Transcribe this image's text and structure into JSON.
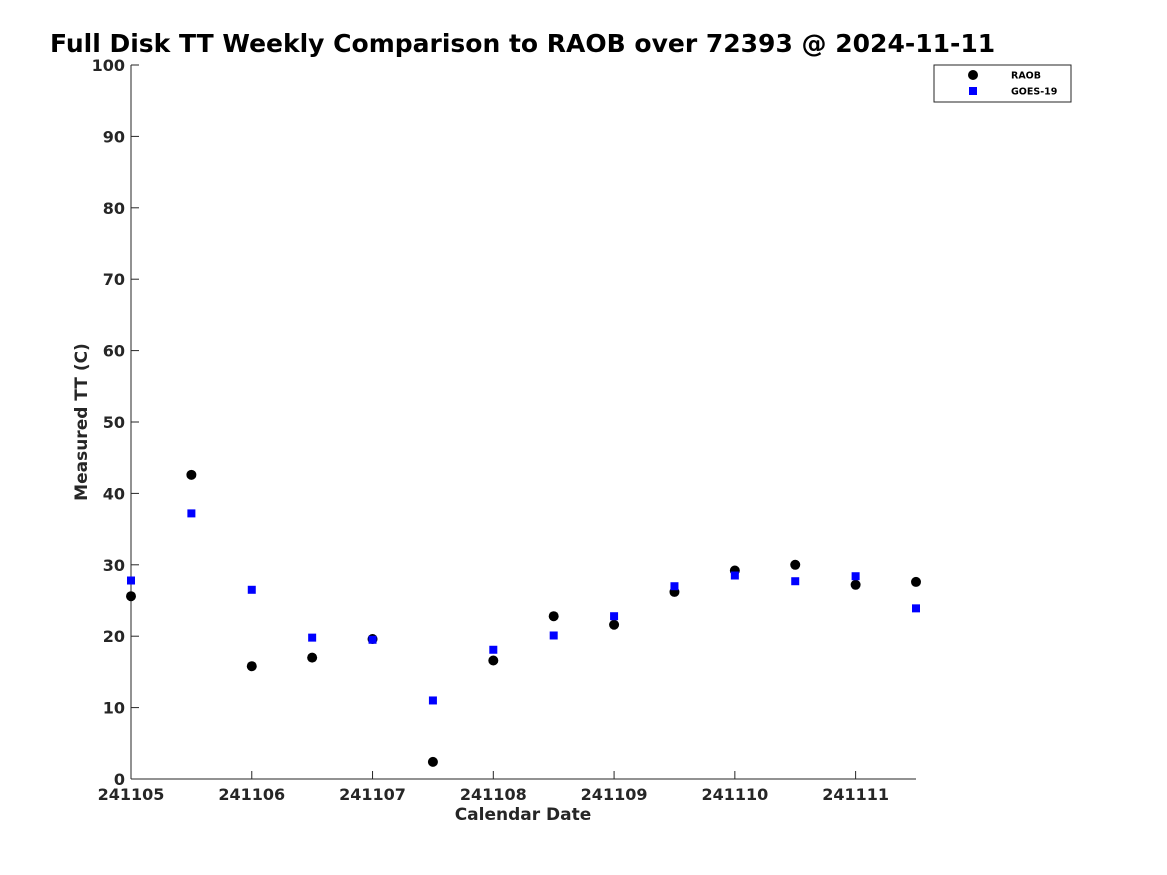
{
  "chart_data": {
    "type": "scatter",
    "title": "Full Disk TT Weekly Comparison to RAOB over 72393 @ 2024-11-11",
    "xlabel": "Calendar Date",
    "ylabel": "Measured TT (C)",
    "x_tick_labels": [
      "241105",
      "241106",
      "241107",
      "241108",
      "241109",
      "241110",
      "241111"
    ],
    "x_tick_values": [
      0,
      1,
      2,
      3,
      4,
      5,
      6
    ],
    "xlim": [
      0,
      6.5
    ],
    "ylim": [
      0,
      100
    ],
    "y_ticks": [
      0,
      10,
      20,
      30,
      40,
      50,
      60,
      70,
      80,
      90,
      100
    ],
    "grid": false,
    "legend_position": "top-right",
    "series": [
      {
        "name": "RAOB",
        "marker": "circle",
        "color": "#000000",
        "x": [
          0,
          0.5,
          1,
          1.5,
          2,
          2.5,
          3,
          3.5,
          4,
          4.5,
          5,
          5.5,
          6,
          6.5
        ],
        "values": [
          25.6,
          42.6,
          15.8,
          17.0,
          19.6,
          2.4,
          16.6,
          22.8,
          21.6,
          26.2,
          29.2,
          30.0,
          27.2,
          27.6
        ]
      },
      {
        "name": "GOES-19",
        "marker": "square",
        "color": "#0000ff",
        "x": [
          0,
          0.5,
          1,
          1.5,
          2,
          2.5,
          3,
          3.5,
          4,
          4.5,
          5,
          5.5,
          6,
          6.5
        ],
        "values": [
          27.8,
          37.2,
          26.5,
          19.8,
          19.5,
          11.0,
          18.1,
          20.1,
          22.8,
          27.0,
          28.5,
          27.7,
          28.4,
          23.9
        ]
      }
    ]
  }
}
